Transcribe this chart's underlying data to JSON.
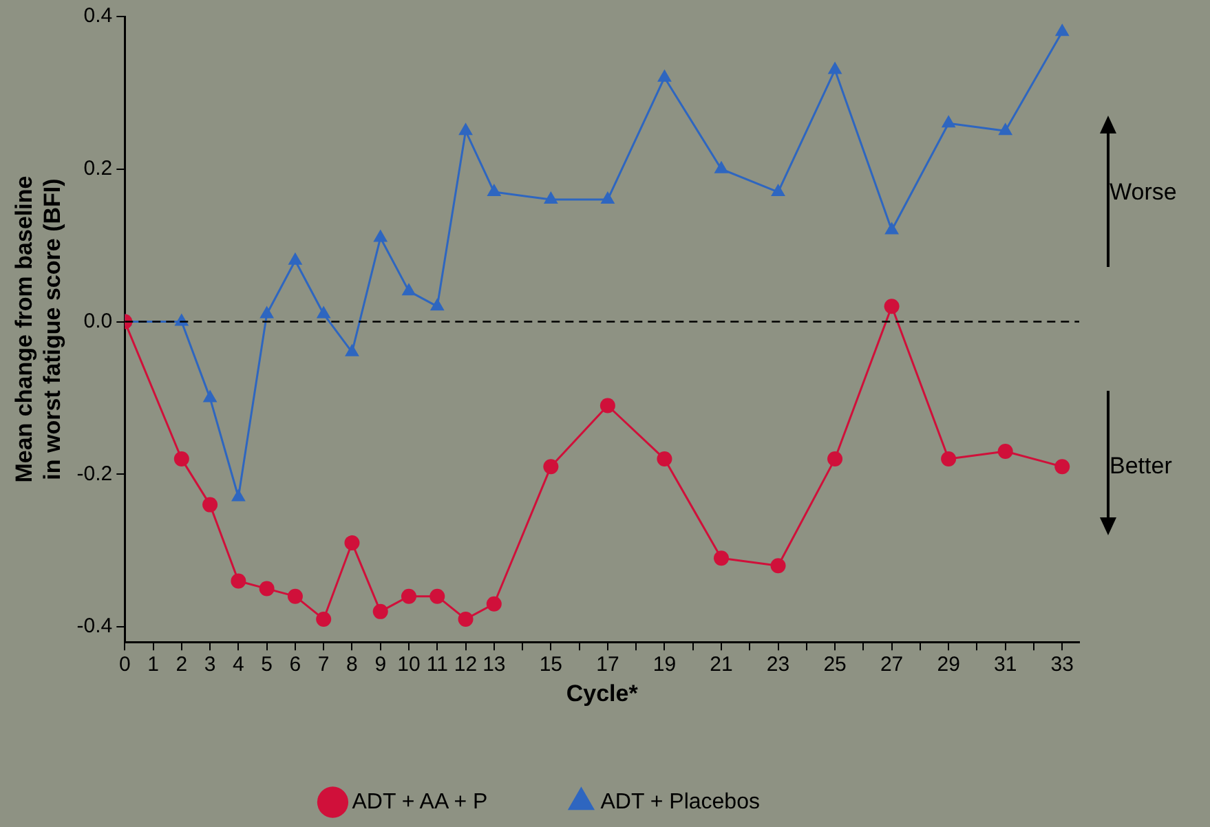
{
  "chart_data": {
    "type": "line",
    "xlabel": "Cycle*",
    "ylabel": "Mean change from baseline\nin worst fatigue score (BFI)",
    "x": [
      0,
      2,
      3,
      4,
      5,
      6,
      7,
      8,
      9,
      10,
      11,
      12,
      13,
      15,
      17,
      19,
      21,
      23,
      25,
      27,
      29,
      31,
      33
    ],
    "series": [
      {
        "name": "ADT + AA + P",
        "color": "#d0103a",
        "marker": "circle",
        "values": [
          0,
          -0.18,
          -0.24,
          -0.34,
          -0.35,
          -0.36,
          -0.39,
          -0.29,
          -0.38,
          -0.36,
          -0.36,
          -0.39,
          -0.37,
          -0.19,
          -0.11,
          -0.18,
          -0.31,
          -0.32,
          -0.18,
          0.02,
          -0.18,
          -0.17,
          -0.19
        ]
      },
      {
        "name": "ADT + Placebos",
        "color": "#2e66c0",
        "marker": "triangle",
        "values": [
          0,
          0,
          -0.1,
          -0.23,
          0.01,
          0.08,
          0.01,
          -0.04,
          0.11,
          0.04,
          0.02,
          0.25,
          0.17,
          0.16,
          0.16,
          0.32,
          0.2,
          0.17,
          0.33,
          0.12,
          0.26,
          0.25,
          0.38
        ]
      }
    ],
    "xlim": [
      0,
      33.6
    ],
    "xticks": [
      0,
      1,
      2,
      3,
      4,
      5,
      6,
      7,
      8,
      9,
      10,
      11,
      12,
      13,
      {
        "value": 14,
        "label": null
      },
      15,
      {
        "value": 16,
        "label": null
      },
      17,
      {
        "value": 18,
        "label": null
      },
      19,
      {
        "value": 20,
        "label": null
      },
      21,
      {
        "value": 22,
        "label": null
      },
      23,
      {
        "value": 24,
        "label": null
      },
      25,
      {
        "value": 26,
        "label": null
      },
      27,
      {
        "value": 28,
        "label": null
      },
      29,
      {
        "value": 30,
        "label": null
      },
      31,
      {
        "value": 32,
        "label": null
      },
      33
    ],
    "ylim": [
      -0.42,
      0.4
    ],
    "yticks": [
      -0.4,
      -0.2,
      {
        "value": 0,
        "label": "0.0"
      },
      0.2,
      0.4
    ],
    "ref_lines": [
      {
        "axis": "y",
        "value": 0,
        "color": "#000000",
        "line_style": "dashed"
      }
    ],
    "annotations": [
      "Worse",
      "Better"
    ],
    "grid": false,
    "legend": "bottom",
    "line_style": "solid"
  }
}
